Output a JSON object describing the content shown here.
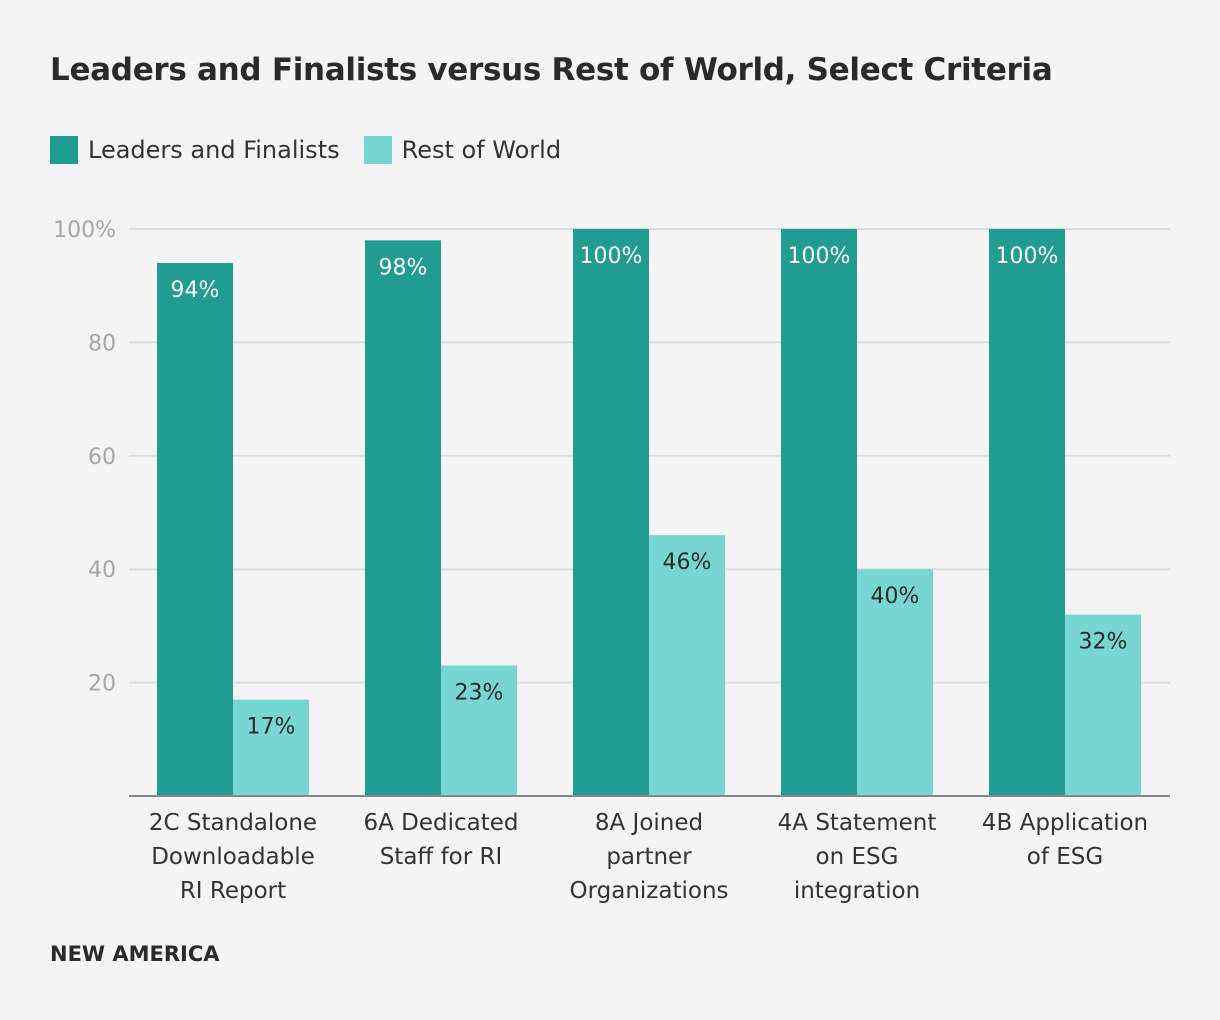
{
  "chart_data": {
    "type": "bar",
    "title": "Leaders and Finalists versus Rest of World, Select Criteria",
    "categories": [
      [
        "2C Standalone",
        "Downloadable",
        "RI Report"
      ],
      [
        "6A Dedicated",
        "Staff for RI"
      ],
      [
        "8A Joined",
        "partner",
        "Organizations"
      ],
      [
        "4A Statement",
        "on ESG",
        "integration"
      ],
      [
        "4B Application",
        "of ESG"
      ]
    ],
    "series": [
      {
        "name": "Leaders and Finalists",
        "color": "#219c93",
        "values": [
          94,
          98,
          100,
          100,
          100
        ],
        "labels": [
          "94%",
          "98%",
          "100%",
          "100%",
          "100%"
        ]
      },
      {
        "name": "Rest of World",
        "color": "#77d6d1",
        "values": [
          17,
          23,
          46,
          40,
          32
        ],
        "labels": [
          "17%",
          "23%",
          "46%",
          "40%",
          "32%"
        ]
      }
    ],
    "yticks": [
      20,
      40,
      60,
      80,
      100
    ],
    "ytick_labels": [
      "20",
      "40",
      "60",
      "80",
      "100%"
    ],
    "ylim": [
      0,
      100
    ],
    "xlabel": "",
    "ylabel": "",
    "grid": true,
    "legend": "top-left"
  },
  "footer": "NEW AMERICA"
}
